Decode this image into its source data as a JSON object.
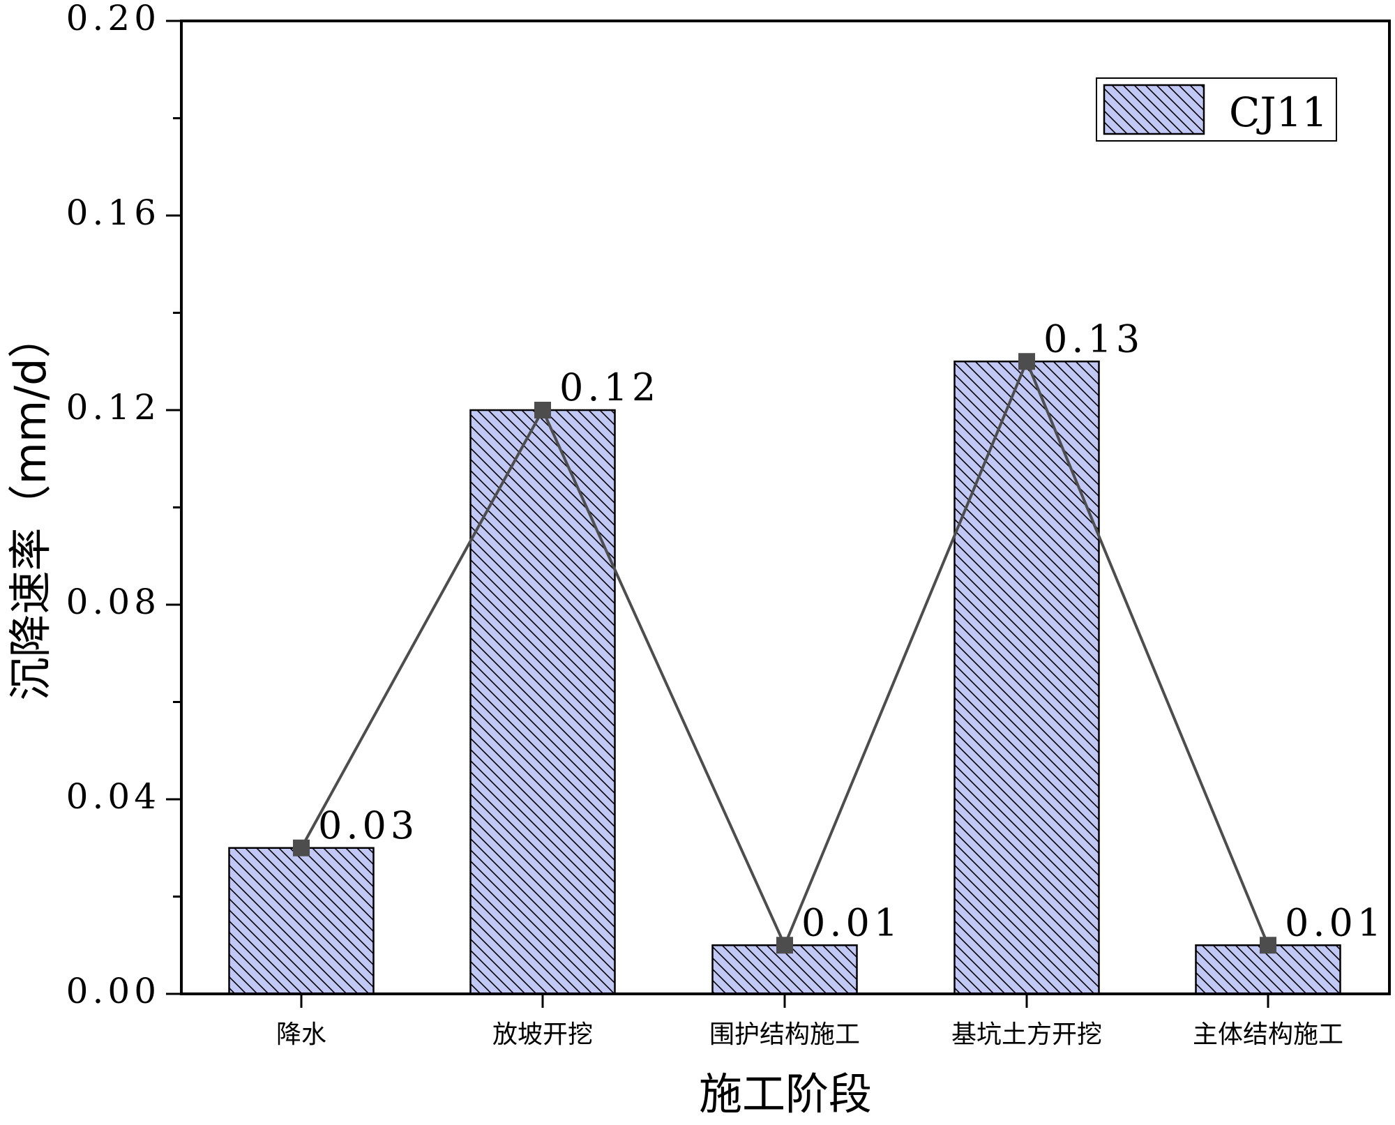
{
  "chart_data": {
    "type": "bar",
    "categories": [
      "降水",
      "放坡开挖",
      "围护结构施工",
      "基坑土方开挖",
      "主体结构施工"
    ],
    "series": [
      {
        "name": "CJ11",
        "values": [
          0.03,
          0.12,
          0.01,
          0.13,
          0.01
        ]
      }
    ],
    "data_labels": [
      "0.03",
      "0.12",
      "0.01",
      "0.13",
      "0.01"
    ],
    "overlay_line": true,
    "title": "",
    "xlabel": "施工阶段",
    "ylabel": "沉降速率（mm/d）",
    "ylim": [
      0,
      0.2
    ],
    "yticks": [
      0.0,
      0.04,
      0.08,
      0.12,
      0.16,
      0.2
    ],
    "ytick_labels": [
      "0.00",
      "0.04",
      "0.08",
      "0.12",
      "0.16",
      "0.20"
    ],
    "legend": {
      "label": "CJ11",
      "location": "top-right"
    },
    "grid": false,
    "colors": {
      "bar_fill": "#c2c8f6",
      "hatch": "#000000",
      "line": "#4d4d4d",
      "marker": "#4d4d4d"
    }
  }
}
